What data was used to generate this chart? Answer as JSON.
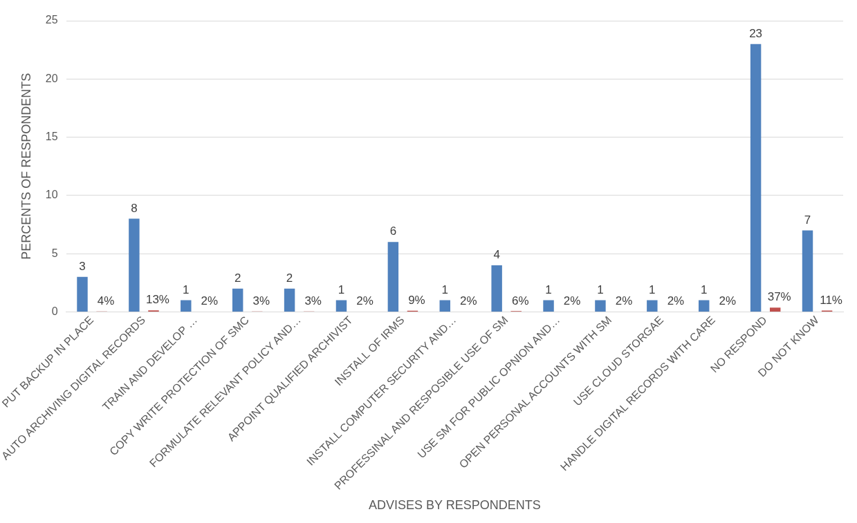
{
  "chart_data": {
    "type": "bar",
    "xlabel": "ADVISES BY RESPONDENTS",
    "ylabel": "PERCENTS OF RESPONDENTS",
    "categories": [
      "PUT BACKUP IN PLACE",
      "AUTO ARCHIVING DIGITAL RECORDS",
      "TRAIN AND DEVELOP …",
      "COPY WRITE PROTECTION OF SMC",
      "FORMULATE RELEVANT POLICY AND…",
      "APPOINT QUALIFIED ARCHIVIST",
      "INSTALL OF IRMS",
      "INSTALL COMPUTER SECURITY AND…",
      "PROFESSINAL AND RESPOSIBLE USE OF SM",
      "USE SM FOR PUBLIC OPNION AND…",
      "OPEN PERSONAL ACCOUNTS WITH SM",
      "USE CLOUD STORGAE",
      "HANDLE DIGITAL RECORDS WITH CARE",
      "NO RESPOND",
      "DO NOT KNOW"
    ],
    "series": [
      {
        "color": "#4f81bd",
        "values": [
          3,
          8,
          1,
          2,
          2,
          1,
          6,
          1,
          4,
          1,
          1,
          1,
          1,
          23,
          7
        ],
        "value_labels": [
          "3",
          "8",
          "1",
          "2",
          "2",
          "1",
          "6",
          "1",
          "4",
          "1",
          "1",
          "1",
          "1",
          "23",
          "7"
        ]
      },
      {
        "color": "#c0504d",
        "values": [
          0.04,
          0.13,
          0.02,
          0.03,
          0.03,
          0.02,
          0.09,
          0.02,
          0.06,
          0.02,
          0.02,
          0.02,
          0.02,
          0.37,
          0.11
        ],
        "value_labels": [
          "4%",
          "13%",
          "2%",
          "3%",
          "3%",
          "2%",
          "9%",
          "2%",
          "6%",
          "2%",
          "2%",
          "2%",
          "2%",
          "37%",
          "11%"
        ]
      }
    ],
    "ylim": [
      0,
      25
    ],
    "yticks": [
      0,
      5,
      10,
      15,
      20,
      25
    ],
    "grid": "y",
    "legend": false
  }
}
